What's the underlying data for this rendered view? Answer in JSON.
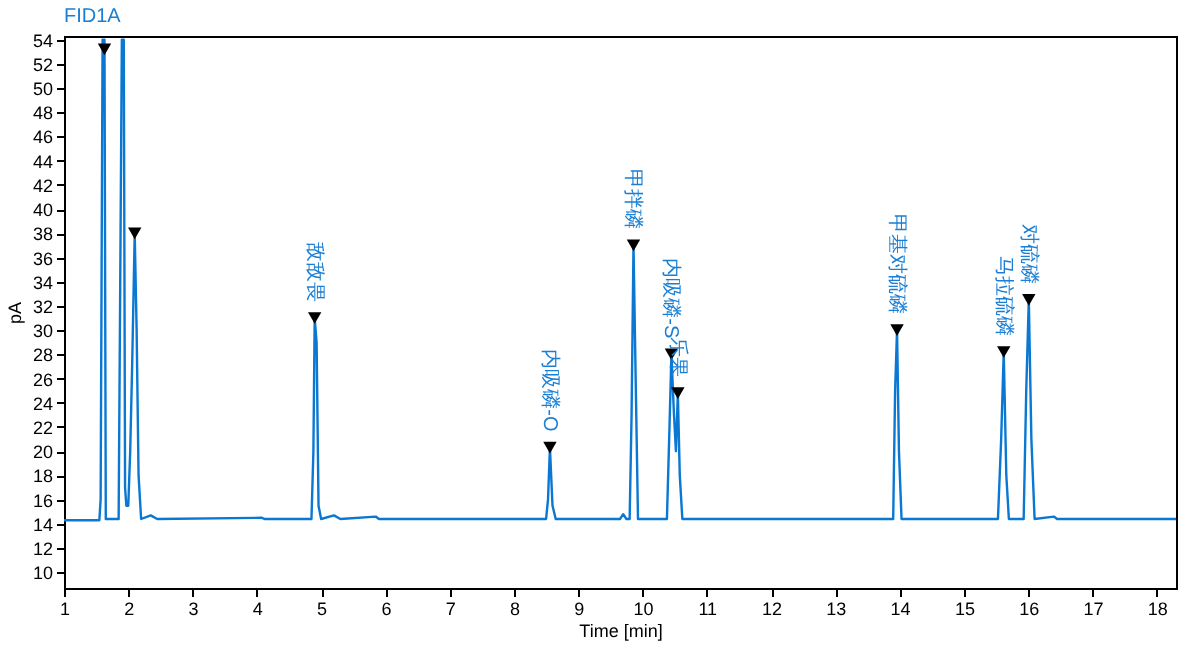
{
  "chart_data": {
    "type": "line",
    "title": "FID1A",
    "xlabel": "Time [min]",
    "ylabel": "pA",
    "xlim": [
      1,
      18.3
    ],
    "xticks": [
      1,
      2,
      3,
      4,
      5,
      6,
      7,
      8,
      9,
      10,
      11,
      12,
      13,
      14,
      15,
      16,
      17,
      18
    ],
    "ylim": [
      8.7,
      54.3
    ],
    "yticks": [
      10,
      12,
      14,
      16,
      18,
      20,
      22,
      24,
      26,
      28,
      30,
      32,
      34,
      36,
      38,
      40,
      42,
      44,
      46,
      48,
      50,
      52,
      54
    ],
    "series": [
      {
        "color": "#0a78d2",
        "marker": "none",
        "x": [
          1,
          1.55,
          1.57,
          1.6,
          1.63,
          1.65,
          1.85,
          1.88,
          1.9,
          1.93,
          1.95,
          1.97,
          2.0,
          2.03,
          2.06,
          2.1,
          2.13,
          2.16,
          2.2,
          2.35,
          2.45,
          4.08,
          4.12,
          4.85,
          4.88,
          4.9,
          4.93,
          4.96,
          5.0,
          5.2,
          5.3,
          5.85,
          5.9,
          8.5,
          8.53,
          8.56,
          8.6,
          8.65,
          9.65,
          9.7,
          9.75,
          9.8,
          9.83,
          9.86,
          9.9,
          9.93,
          10.38,
          10.42,
          10.45,
          10.49,
          10.52,
          10.55,
          10.58,
          10.62,
          13.9,
          13.93,
          13.96,
          13.99,
          14.03,
          15.53,
          15.58,
          15.62,
          15.66,
          15.7,
          15.93,
          15.97,
          16.01,
          16.05,
          16.1,
          16.4,
          16.45,
          18.3
        ],
        "values": [
          14.3,
          14.3,
          16,
          54,
          54,
          14.4,
          14.4,
          38,
          54,
          54,
          17,
          15.5,
          15.5,
          20,
          27,
          38,
          30,
          18,
          14.4,
          14.7,
          14.4,
          14.5,
          14.4,
          14.4,
          20,
          31,
          29,
          15.5,
          14.4,
          14.7,
          14.4,
          14.6,
          14.4,
          14.4,
          16,
          20.3,
          15.5,
          14.4,
          14.4,
          14.8,
          14.4,
          14.4,
          23,
          37,
          24,
          14.4,
          14.4,
          22,
          28,
          23,
          20,
          24.8,
          18,
          14.4,
          14.4,
          25,
          30,
          20,
          14.4,
          14.4,
          21,
          28.2,
          18,
          14.4,
          14.4,
          25,
          32.5,
          21,
          14.4,
          14.6,
          14.4,
          14.4
        ]
      },
      {
        "type": "scatter",
        "color": "#000000",
        "marker": "triangle",
        "x": [
          1.63,
          2.1,
          4.9,
          8.56,
          9.86,
          10.45,
          10.55,
          13.96,
          15.62,
          16.01
        ],
        "values": [
          53.2,
          38,
          31,
          20.3,
          37,
          28,
          24.8,
          30,
          28.2,
          32.5
        ]
      }
    ],
    "annotations": [
      {
        "text": "敌敌畏",
        "x": 4.9,
        "y": 31
      },
      {
        "text": "内吸磷-O",
        "x": 8.56,
        "y": 20.3
      },
      {
        "text": "甲拌磷",
        "x": 9.86,
        "y": 37
      },
      {
        "text": "内吸磷-S",
        "x": 10.45,
        "y": 28
      },
      {
        "text": "乐果",
        "x": 10.55,
        "y": 24.8
      },
      {
        "text": "甲基对硫磷",
        "x": 13.96,
        "y": 30
      },
      {
        "text": "马拉硫磷",
        "x": 15.62,
        "y": 28.2
      },
      {
        "text": "对硫磷",
        "x": 16.01,
        "y": 32.5
      }
    ]
  }
}
